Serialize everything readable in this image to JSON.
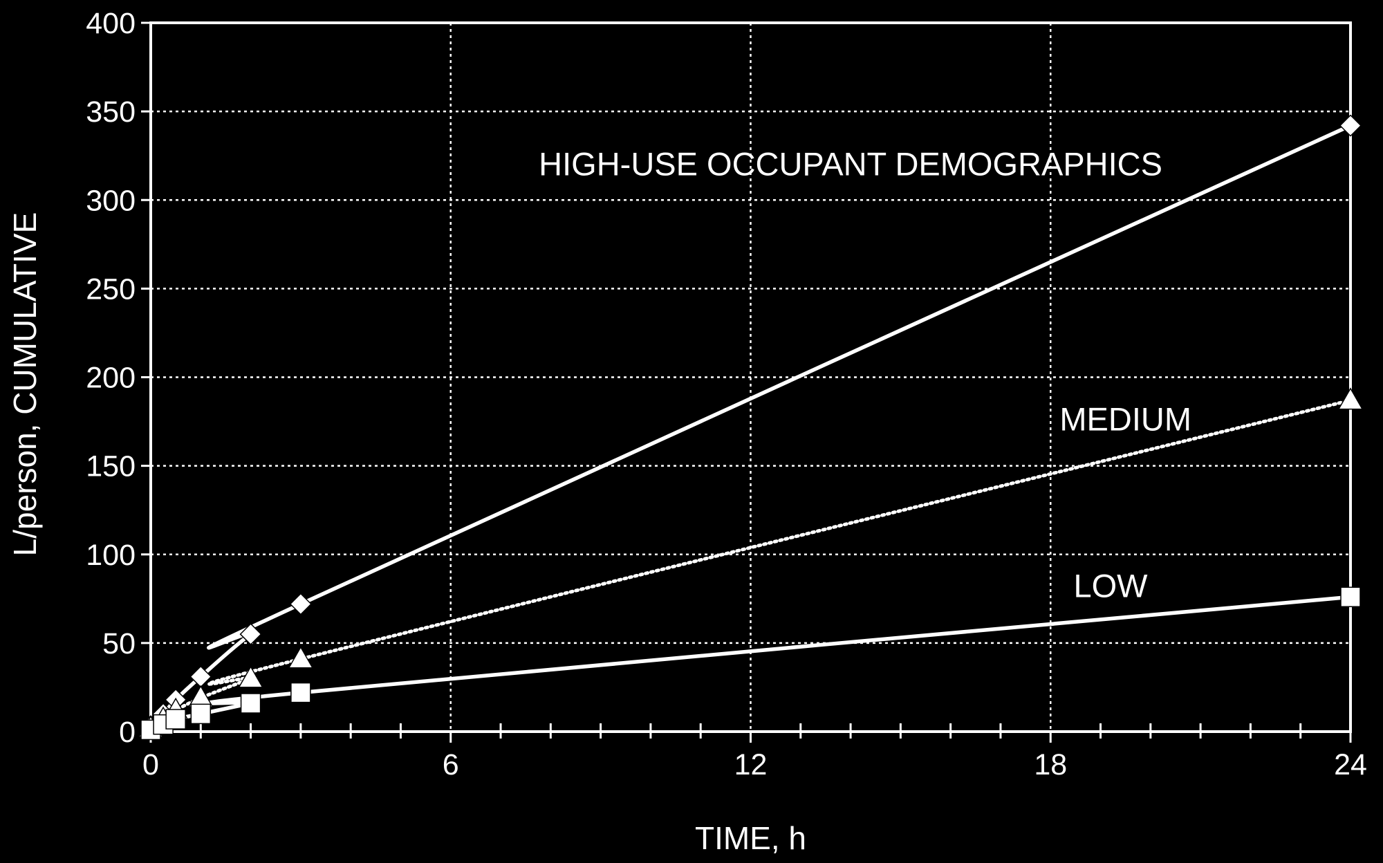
{
  "chart_data": {
    "type": "line",
    "title": "",
    "xlabel": "TIME, h",
    "ylabel": "L/person, CUMULATIVE",
    "xlim": [
      0,
      24
    ],
    "ylim": [
      0,
      400
    ],
    "x_ticks": [
      0,
      6,
      12,
      18,
      24
    ],
    "x_tick_labels": [
      "0",
      "6",
      "12",
      "18",
      "24"
    ],
    "y_ticks": [
      0,
      50,
      100,
      150,
      200,
      250,
      300,
      350,
      400
    ],
    "y_tick_labels": [
      "0",
      "50",
      "100",
      "150",
      "200",
      "250",
      "300",
      "350",
      "400"
    ],
    "x_minor_step": 1,
    "grid": true,
    "series": [
      {
        "name": "HIGH-USE OCCUPANT DEMOGRAPHICS",
        "marker": "diamond",
        "line": "solid",
        "x": [
          0,
          0.25,
          0.5,
          1,
          2,
          3,
          24
        ],
        "y": [
          3,
          10,
          18,
          31,
          55,
          72,
          342
        ]
      },
      {
        "name": "MEDIUM",
        "marker": "triangle",
        "line": "dotted",
        "x": [
          0,
          0.25,
          0.5,
          1,
          2,
          3,
          24
        ],
        "y": [
          2,
          7,
          12,
          19,
          30,
          41,
          187
        ]
      },
      {
        "name": "LOW",
        "marker": "square",
        "line": "solid",
        "x": [
          0,
          0.25,
          0.5,
          1,
          2,
          3,
          24
        ],
        "y": [
          1,
          4,
          7,
          10,
          16,
          22,
          76
        ]
      }
    ],
    "annotations": [
      {
        "text": "HIGH-USE OCCUPANT DEMOGRAPHICS",
        "x": 14,
        "y": 314
      },
      {
        "text": "MEDIUM",
        "x": 19.5,
        "y": 170
      },
      {
        "text": "LOW",
        "x": 19.2,
        "y": 76
      }
    ]
  },
  "colors": {
    "background": "#000000",
    "foreground": "#ffffff"
  }
}
